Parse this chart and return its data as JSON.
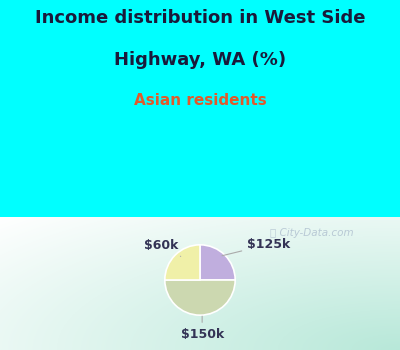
{
  "title_line1": "Income distribution in West Side",
  "title_line2": "Highway, WA (%)",
  "subtitle": "Asian residents",
  "slices": [
    {
      "label": "$125k",
      "value": 25,
      "color": "#c0aede"
    },
    {
      "label": "$60k",
      "value": 25,
      "color": "#f0f0a8"
    },
    {
      "label": "$150k",
      "value": 50,
      "color": "#ccd8b0"
    }
  ],
  "title_fontsize": 13,
  "subtitle_fontsize": 11,
  "subtitle_color": "#e05a2b",
  "title_color": "#1a1a3a",
  "title_bg_color": "#00ffff",
  "label_fontsize": 9,
  "watermark": "City-Data.com",
  "annot_color": "#333355",
  "line_color": "#aaaaaa"
}
